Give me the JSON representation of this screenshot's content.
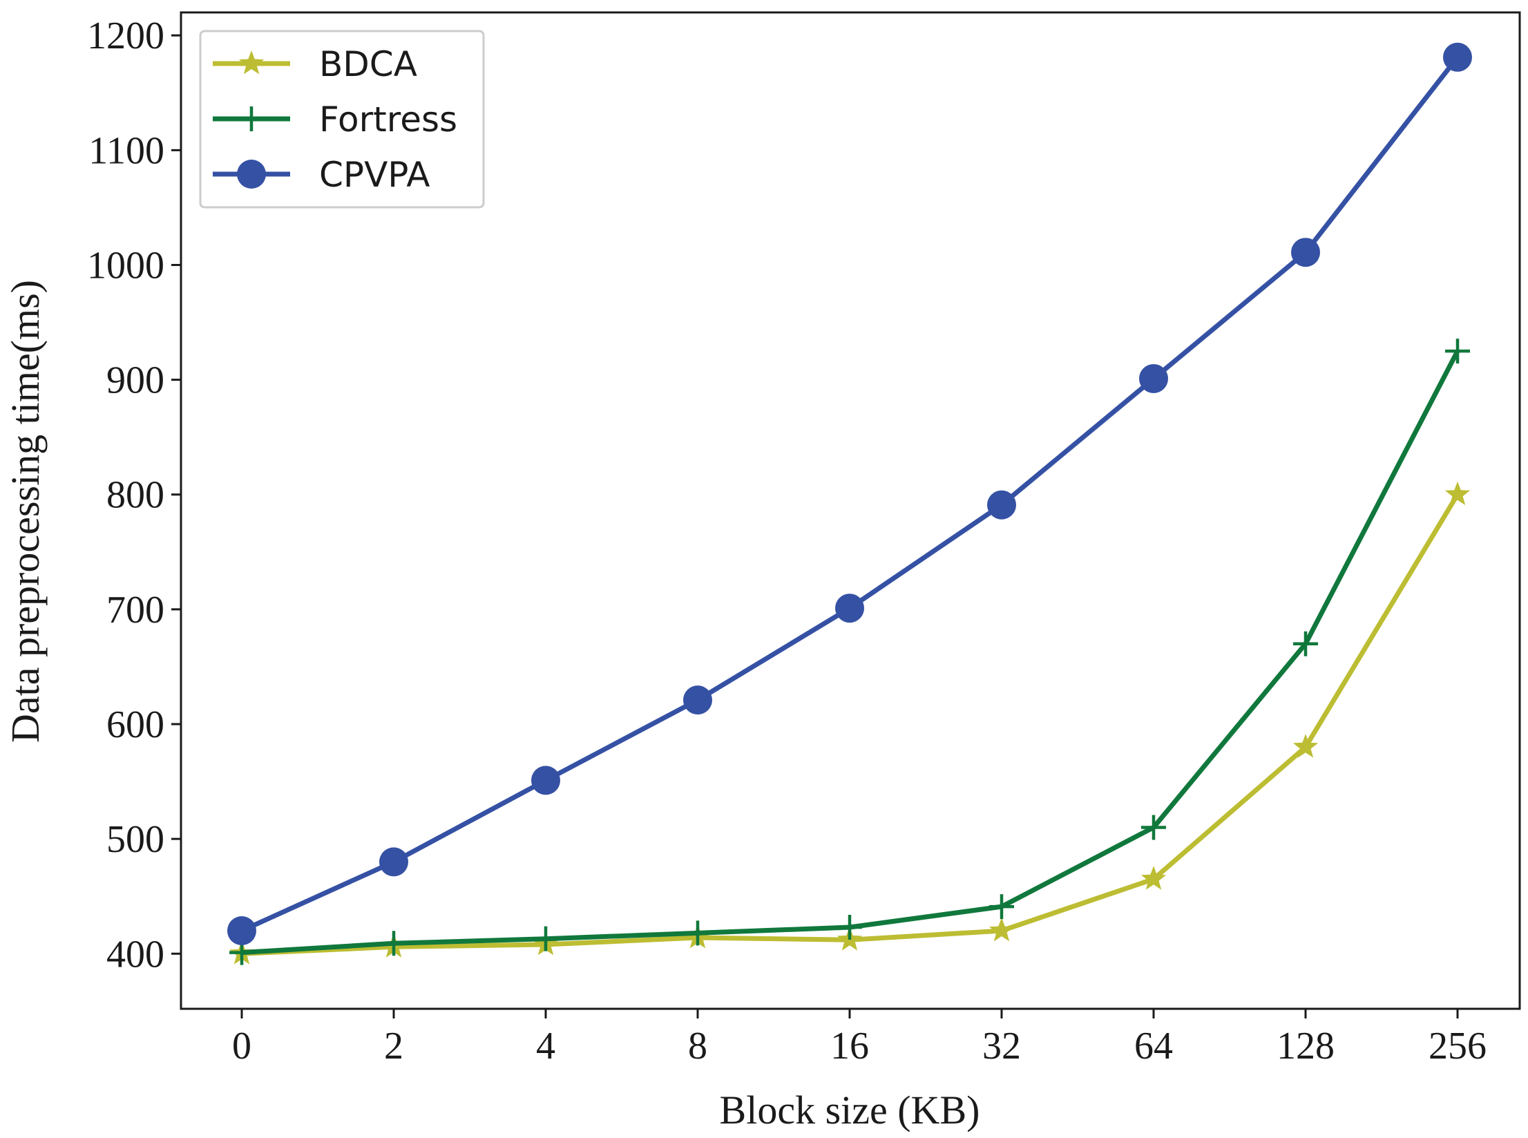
{
  "chart_data": {
    "type": "line",
    "title": "",
    "xlabel": "Block size (KB)",
    "ylabel": "Data preprocessing time(ms)",
    "categories": [
      "0",
      "2",
      "4",
      "8",
      "16",
      "32",
      "64",
      "128",
      "256"
    ],
    "ylim": [
      352,
      1220
    ],
    "yticks": [
      400,
      500,
      600,
      700,
      800,
      900,
      1000,
      1100,
      1200
    ],
    "legend_position": "top-left",
    "grid": false,
    "series": [
      {
        "name": "BDCA",
        "color": "#bcbd32",
        "marker": "star",
        "values": [
          400,
          406,
          408,
          414,
          412,
          420,
          465,
          580,
          800
        ]
      },
      {
        "name": "Fortress",
        "color": "#10783c",
        "marker": "plus",
        "values": [
          401,
          409,
          413,
          418,
          423,
          441,
          510,
          670,
          925
        ]
      },
      {
        "name": "CPVPA",
        "color": "#3551a4",
        "marker": "circle",
        "values": [
          420,
          480,
          551,
          621,
          701,
          791,
          901,
          1011,
          1181
        ]
      }
    ]
  }
}
